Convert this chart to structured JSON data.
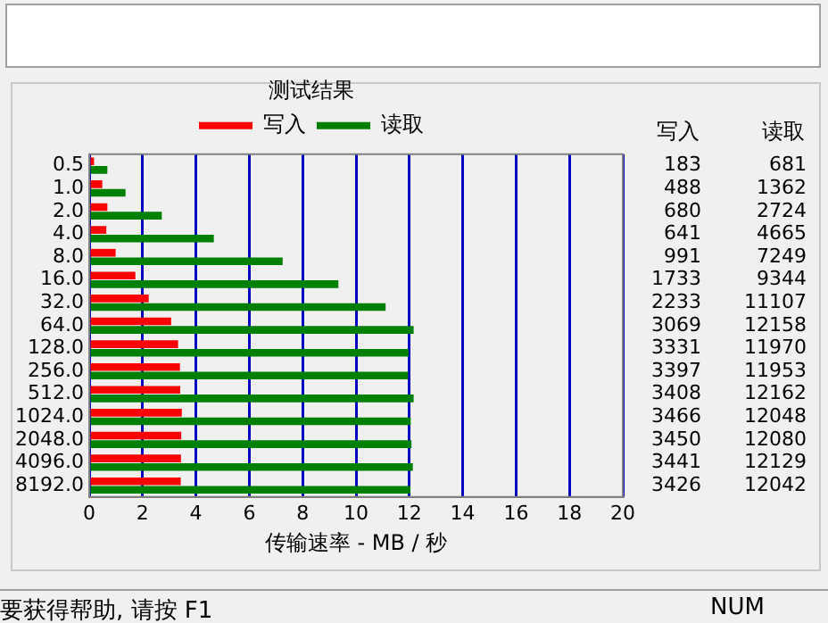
{
  "chart_data": {
    "type": "bar",
    "orientation": "horizontal",
    "title": "测试结果",
    "xlabel": "传输速率 - MB / 秒",
    "categories": [
      "0.5",
      "1.0",
      "2.0",
      "4.0",
      "8.0",
      "16.0",
      "32.0",
      "64.0",
      "128.0",
      "256.0",
      "512.0",
      "1024.0",
      "2048.0",
      "4096.0",
      "8192.0"
    ],
    "series": [
      {
        "name": "写入",
        "color": "#ff0000",
        "values": [
          0.18,
          0.49,
          0.68,
          0.64,
          0.99,
          1.73,
          2.23,
          3.07,
          3.33,
          3.4,
          3.41,
          3.47,
          3.45,
          3.44,
          3.43
        ]
      },
      {
        "name": "读取",
        "color": "#008000",
        "values": [
          0.68,
          1.36,
          2.72,
          4.67,
          7.25,
          9.34,
          11.11,
          12.16,
          11.97,
          11.95,
          12.16,
          12.05,
          12.08,
          12.13,
          12.04
        ]
      }
    ],
    "xlim": [
      0,
      20
    ],
    "xticks": [
      0,
      2,
      4,
      6,
      8,
      10,
      12,
      14,
      16,
      18,
      20
    ],
    "grid": "x",
    "legend": "top",
    "annotations": [
      "要获得帮助, 请按 F1",
      "NUM",
      "183",
      "681",
      "488",
      "1362",
      "680",
      "2724",
      "641",
      "4665",
      "991",
      "7249",
      "1733",
      "9344",
      "2233",
      "11107",
      "3069",
      "12158",
      "3331",
      "11970",
      "3397",
      "11953",
      "3408",
      "12162",
      "3466",
      "12048",
      "3450",
      "12080",
      "3441",
      "12129",
      "3426",
      "12042"
    ]
  }
}
